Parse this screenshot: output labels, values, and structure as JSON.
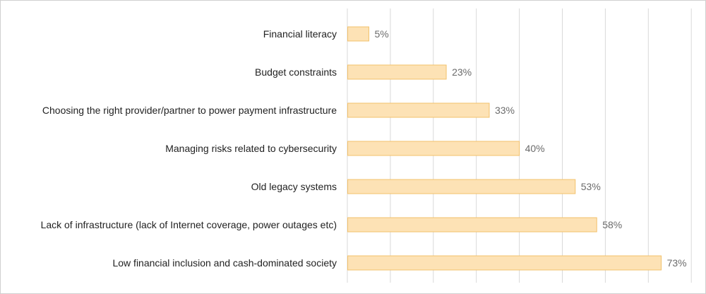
{
  "chart_data": {
    "type": "bar",
    "orientation": "horizontal",
    "categories": [
      "Financial literacy",
      "Budget constraints",
      "Choosing the right provider/partner to power payment infrastructure",
      "Managing risks related to cybersecurity",
      "Old legacy systems",
      "Lack of infrastructure (lack of Internet coverage, power outages etc)",
      "Low financial inclusion and cash-dominated society"
    ],
    "values": [
      5,
      23,
      33,
      40,
      53,
      58,
      73
    ],
    "value_labels": [
      "5%",
      "23%",
      "33%",
      "40%",
      "53%",
      "58%",
      "73%"
    ],
    "xlim": [
      0,
      80
    ],
    "grid": true,
    "colors": {
      "bar_fill": "#fde2b5",
      "bar_stroke": "#f2c16b",
      "grid": "#d9d9d9",
      "value_text": "#6b6b6b"
    }
  }
}
